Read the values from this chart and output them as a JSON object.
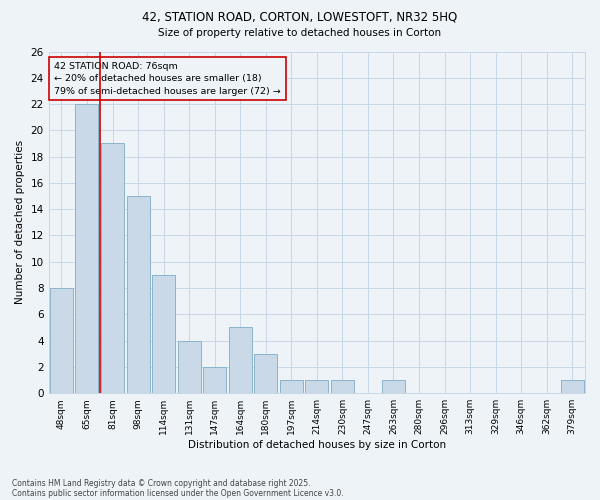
{
  "title1": "42, STATION ROAD, CORTON, LOWESTOFT, NR32 5HQ",
  "title2": "Size of property relative to detached houses in Corton",
  "xlabel": "Distribution of detached houses by size in Corton",
  "ylabel": "Number of detached properties",
  "categories": [
    "48sqm",
    "65sqm",
    "81sqm",
    "98sqm",
    "114sqm",
    "131sqm",
    "147sqm",
    "164sqm",
    "180sqm",
    "197sqm",
    "214sqm",
    "230sqm",
    "247sqm",
    "263sqm",
    "280sqm",
    "296sqm",
    "313sqm",
    "329sqm",
    "346sqm",
    "362sqm",
    "379sqm"
  ],
  "values": [
    8,
    22,
    19,
    15,
    9,
    4,
    2,
    5,
    3,
    1,
    1,
    1,
    0,
    1,
    0,
    0,
    0,
    0,
    0,
    0,
    1
  ],
  "bar_color": "#c9d9e8",
  "bar_edge_color": "#8ab4cc",
  "grid_color": "#c8d8e8",
  "background_color": "#eef3f7",
  "vline_color": "#cc0000",
  "annotation_text": "42 STATION ROAD: 76sqm\n← 20% of detached houses are smaller (18)\n79% of semi-detached houses are larger (72) →",
  "annotation_box_color": "#cc0000",
  "ylim": [
    0,
    26
  ],
  "yticks": [
    0,
    2,
    4,
    6,
    8,
    10,
    12,
    14,
    16,
    18,
    20,
    22,
    24,
    26
  ],
  "footer1": "Contains HM Land Registry data © Crown copyright and database right 2025.",
  "footer2": "Contains public sector information licensed under the Open Government Licence v3.0."
}
